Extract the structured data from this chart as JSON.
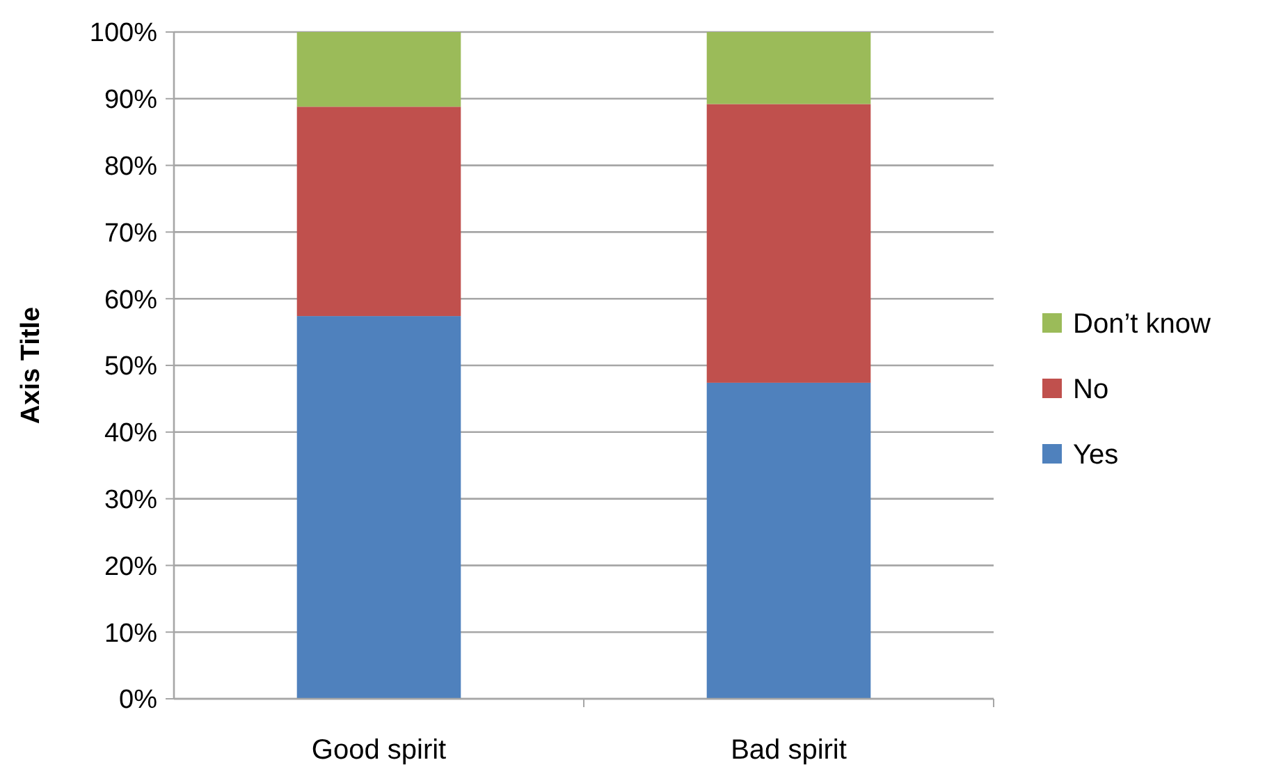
{
  "chart_data": {
    "type": "bar",
    "stacked": true,
    "ylabel": "Axis Title",
    "categories": [
      "Good spirit",
      "Bad spirit"
    ],
    "series": [
      {
        "name": "Yes",
        "color": "#4f81bd",
        "values": [
          57.4,
          47.4
        ]
      },
      {
        "name": "No",
        "color": "#c0504d",
        "values": [
          31.4,
          41.8
        ]
      },
      {
        "name": "Don’t know",
        "color": "#9bbb59",
        "values": [
          11.2,
          10.8
        ]
      }
    ],
    "ylim": [
      0,
      100
    ],
    "yticks": [
      {
        "value": 0,
        "label": "0%"
      },
      {
        "value": 10,
        "label": "10%"
      },
      {
        "value": 20,
        "label": "20%"
      },
      {
        "value": 30,
        "label": "30%"
      },
      {
        "value": 40,
        "label": "40%"
      },
      {
        "value": 50,
        "label": "50%"
      },
      {
        "value": 60,
        "label": "60%"
      },
      {
        "value": 70,
        "label": "70%"
      },
      {
        "value": 80,
        "label": "80%"
      },
      {
        "value": 90,
        "label": "90%"
      },
      {
        "value": 100,
        "label": "100%"
      }
    ],
    "grid": "y",
    "legend": "right"
  }
}
